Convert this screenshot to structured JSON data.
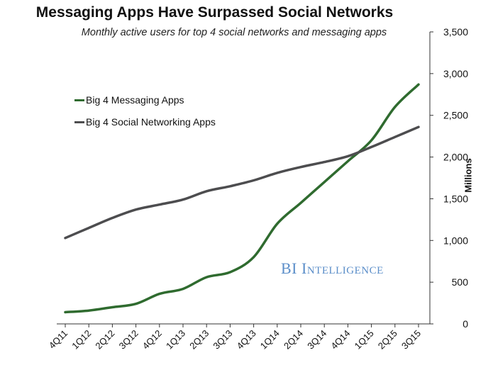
{
  "chart_data": {
    "type": "line",
    "title": "Messaging Apps Have Surpassed Social Networks",
    "subtitle": "Monthly active users for top 4 social networks and messaging apps",
    "ylabel": "Millions",
    "xlabel": "",
    "ylim": [
      0,
      3500
    ],
    "yticks": [
      "0",
      "500",
      "1,000",
      "1,500",
      "2,000",
      "2,500",
      "3,000",
      "3,500"
    ],
    "ytick_values": [
      0,
      500,
      1000,
      1500,
      2000,
      2500,
      3000,
      3500
    ],
    "y_axis_side": "right",
    "grid": false,
    "legend_position": "left",
    "categories": [
      "4Q11",
      "1Q12",
      "2Q12",
      "3Q12",
      "4Q12",
      "1Q13",
      "2Q13",
      "3Q13",
      "4Q13",
      "1Q14",
      "2Q14",
      "3Q14",
      "4Q14",
      "1Q15",
      "2Q15",
      "3Q15"
    ],
    "series": [
      {
        "name": "Big 4 Messaging Apps",
        "color": "#2f6b2f",
        "values": [
          140,
          160,
          200,
          240,
          360,
          420,
          560,
          620,
          800,
          1200,
          1450,
          1700,
          1950,
          2200,
          2600,
          2870
        ]
      },
      {
        "name": "Big 4 Social Networking Apps",
        "color": "#4d4d4f",
        "values": [
          1030,
          1150,
          1270,
          1370,
          1430,
          1490,
          1590,
          1650,
          1720,
          1810,
          1880,
          1940,
          2010,
          2120,
          2240,
          2360
        ]
      }
    ],
    "annotations": [
      "BI Intelligence"
    ]
  }
}
